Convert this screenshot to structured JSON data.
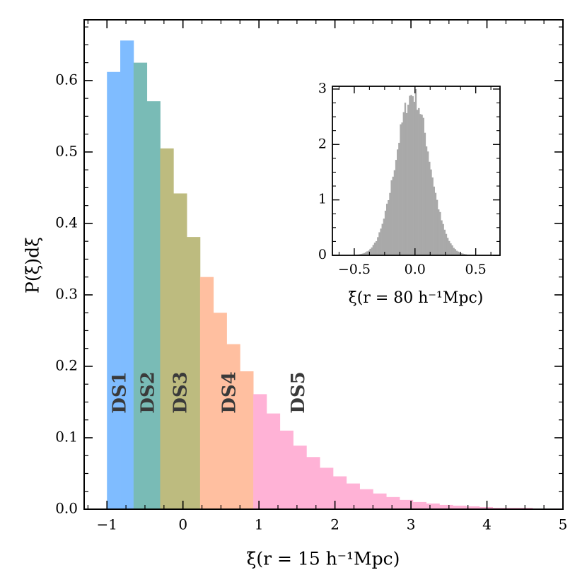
{
  "chart_data": [
    {
      "type": "bar",
      "title": "",
      "xlabel": "ξ̄(r = 15 h⁻¹Mpc)",
      "ylabel": "P(ξ̄)dξ̄",
      "xlim": [
        -1.3,
        5
      ],
      "ylim": [
        0,
        0.685
      ],
      "xticks": [
        -1,
        0,
        1,
        2,
        3,
        4,
        5
      ],
      "xtick_labels": [
        "−1",
        "0",
        "1",
        "2",
        "3",
        "4",
        "5"
      ],
      "yticks": [
        0.0,
        0.1,
        0.2,
        0.3,
        0.4,
        0.5,
        0.6
      ],
      "ytick_labels": [
        "0.0",
        "0.1",
        "0.2",
        "0.3",
        "0.4",
        "0.5",
        "0.6"
      ],
      "bin_width": 0.175,
      "bin_start": -1.0,
      "values": [
        0.612,
        0.656,
        0.625,
        0.571,
        0.505,
        0.442,
        0.381,
        0.325,
        0.275,
        0.231,
        0.193,
        0.161,
        0.134,
        0.11,
        0.089,
        0.073,
        0.058,
        0.046,
        0.036,
        0.028,
        0.022,
        0.017,
        0.013,
        0.01,
        0.008,
        0.006,
        0.005,
        0.004,
        0.003,
        0.002,
        0.002,
        0.002,
        0.001,
        0.001,
        0.001
      ],
      "groups": [
        {
          "name": "DS1",
          "color": "#7fbcff",
          "x_range": [
            -1.0,
            -0.65
          ]
        },
        {
          "name": "DS2",
          "color": "#79bbb6",
          "x_range": [
            -0.65,
            -0.3
          ]
        },
        {
          "name": "DS3",
          "color": "#bdbb7f",
          "x_range": [
            -0.3,
            0.225
          ]
        },
        {
          "name": "DS4",
          "color": "#ffbfa0",
          "x_range": [
            0.225,
            0.925
          ]
        },
        {
          "name": "DS5",
          "color": "#ffb2d6",
          "x_range": [
            0.925,
            5.0
          ]
        }
      ],
      "group_label_positions_x": [
        -0.82,
        -0.45,
        -0.02,
        0.62,
        1.53
      ]
    },
    {
      "type": "bar",
      "name": "inset",
      "title": "",
      "xlabel": "ξ̄(r = 80 h⁻¹Mpc)",
      "ylabel": "",
      "xlim": [
        -0.68,
        0.7
      ],
      "ylim": [
        0,
        3.05
      ],
      "xticks": [
        -0.5,
        0.0,
        0.5
      ],
      "xtick_labels": [
        "−0.5",
        "0.0",
        "0.5"
      ],
      "yticks": [
        0,
        1,
        2,
        3
      ],
      "ytick_labels": [
        "0",
        "1",
        "2",
        "3"
      ],
      "color": "#a9a9a9",
      "distribution": {
        "mean": -0.02,
        "std": 0.137,
        "peak_density": 2.9
      },
      "bin_width": 0.0125
    }
  ]
}
